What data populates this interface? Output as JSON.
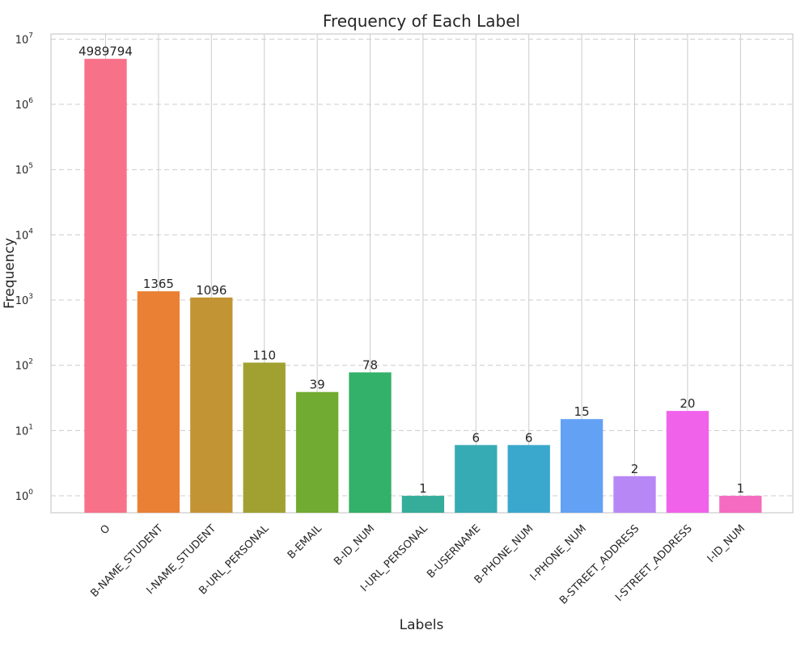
{
  "chart_data": {
    "type": "bar",
    "title": "Frequency of Each Label",
    "xlabel": "Labels",
    "ylabel": "Frequency",
    "yscale": "log",
    "ylim": [
      0.55,
      12000000
    ],
    "ytick_exponents": [
      0,
      1,
      2,
      3,
      4,
      5,
      6,
      7
    ],
    "ytick_base": "10",
    "grid": {
      "y": "dashed",
      "x": "solid"
    },
    "categories": [
      "O",
      "B-NAME_STUDENT",
      "I-NAME_STUDENT",
      "B-URL_PERSONAL",
      "B-EMAIL",
      "B-ID_NUM",
      "I-URL_PERSONAL",
      "B-USERNAME",
      "B-PHONE_NUM",
      "I-PHONE_NUM",
      "B-STREET_ADDRESS",
      "I-STREET_ADDRESS",
      "I-ID_NUM"
    ],
    "values": [
      4989794,
      1365,
      1096,
      110,
      39,
      78,
      1,
      6,
      6,
      15,
      2,
      20,
      1
    ],
    "data_labels": [
      "4989794",
      "1365",
      "1096",
      "110",
      "39",
      "78",
      "1",
      "6",
      "6",
      "15",
      "2",
      "20",
      "1"
    ],
    "colors": [
      "#f77189",
      "#ea8033",
      "#c39434",
      "#a1a131",
      "#72ab31",
      "#33b06a",
      "#35ad9a",
      "#37abb3",
      "#3aa8cd",
      "#62a1f4",
      "#b787f5",
      "#f162eb",
      "#f56bc0"
    ]
  }
}
